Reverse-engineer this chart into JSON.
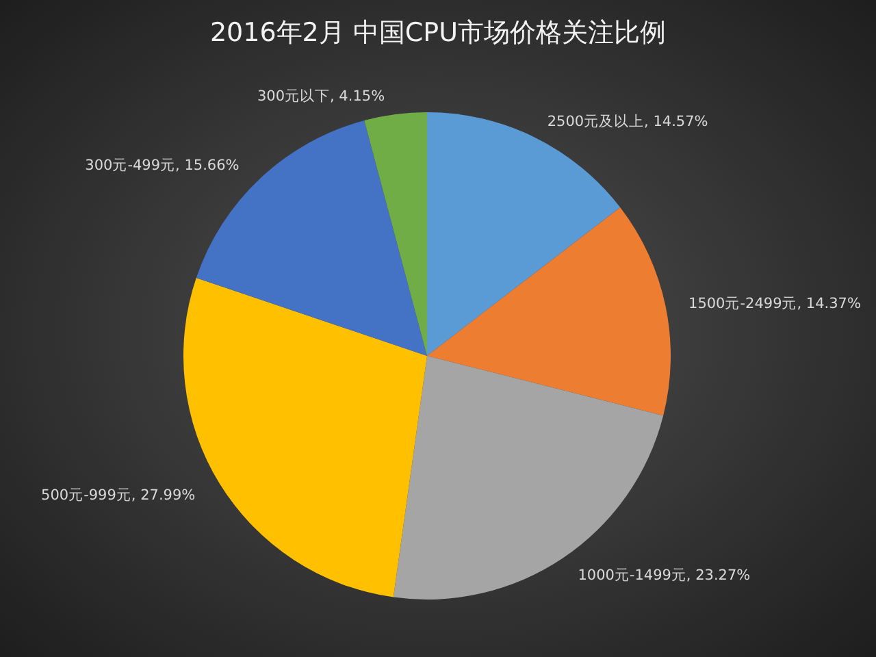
{
  "chart_data": {
    "type": "pie",
    "title": "2016年2月 中国CPU市场价格关注比例",
    "categories": [
      "2500元及以上",
      "1500元-2499元",
      "1000元-1499元",
      "500元-999元",
      "300元-499元",
      "300元以下"
    ],
    "values": [
      14.57,
      14.37,
      23.27,
      27.99,
      15.66,
      4.15
    ],
    "value_labels": [
      "14.57%",
      "14.37%",
      "23.27%",
      "27.99%",
      "15.66%",
      "4.15%"
    ],
    "colors": [
      "#5b9bd5",
      "#ed7d31",
      "#a5a5a5",
      "#ffc000",
      "#4472c4",
      "#70ad47"
    ]
  }
}
